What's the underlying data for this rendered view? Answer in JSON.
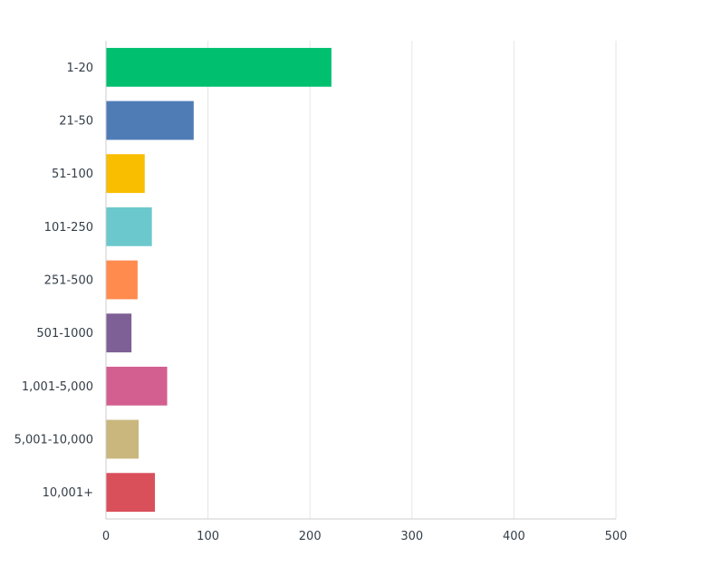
{
  "chart_data": {
    "type": "bar",
    "orientation": "horizontal",
    "categories": [
      "1-20",
      "21-50",
      "51-100",
      "101-250",
      "251-500",
      "501-1000",
      "1,001-5,000",
      "5,001-10,000",
      "10,001+"
    ],
    "values": [
      221,
      86,
      38,
      45,
      31,
      25,
      60,
      32,
      48
    ],
    "colors": [
      "#00bf6f",
      "#507cb6",
      "#f9be00",
      "#6bc8cd",
      "#ff8b4f",
      "#7f6096",
      "#d25f90",
      "#c9b77d",
      "#d9505a"
    ],
    "xlim": [
      0,
      500
    ],
    "x_ticks": [
      "0",
      "100",
      "200",
      "300",
      "400",
      "500"
    ],
    "grid": true,
    "legend": "none",
    "title": "",
    "xlabel": "",
    "ylabel": ""
  }
}
